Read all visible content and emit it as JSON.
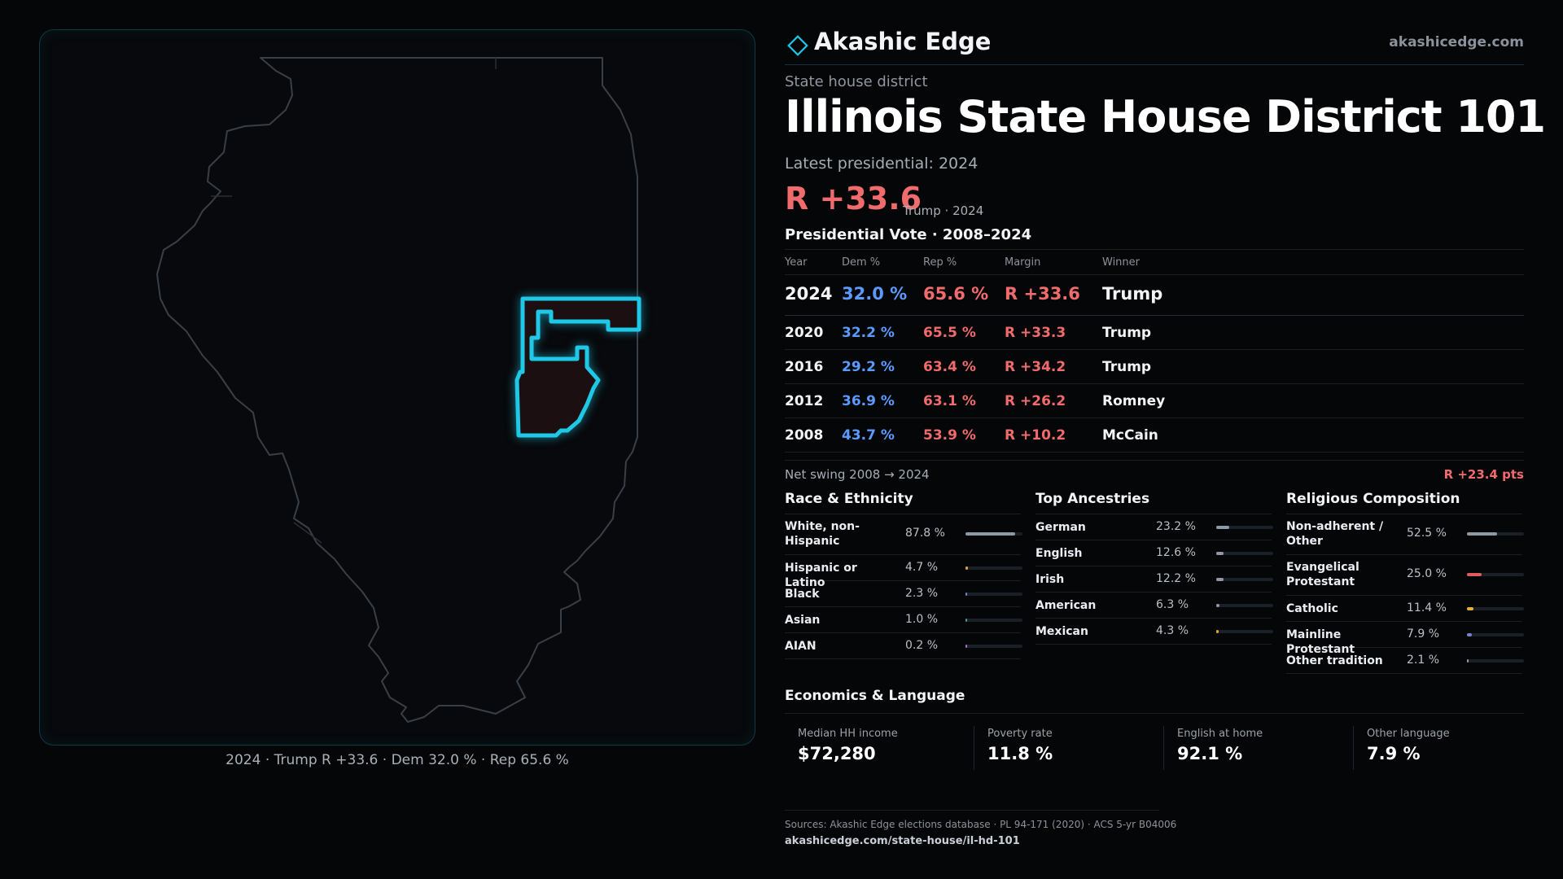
{
  "brand": {
    "name": "Akashic Edge",
    "url": "akashicedge.com"
  },
  "kicker": "State house district",
  "title": "Illinois State House District 101",
  "latest_label": "Latest presidential: 2024",
  "margin": {
    "value": "R +33.6",
    "note": "Trump · 2024"
  },
  "vote_section_title": "Presidential Vote · 2008–2024",
  "vote_table": {
    "headers": [
      "Year",
      "Dem %",
      "Rep %",
      "Margin",
      "Winner"
    ],
    "rows": [
      {
        "year": "2024",
        "dem": "32.0 %",
        "rep": "65.6 %",
        "margin": "R +33.6",
        "winner": "Trump"
      },
      {
        "year": "2020",
        "dem": "32.2 %",
        "rep": "65.5 %",
        "margin": "R +33.3",
        "winner": "Trump"
      },
      {
        "year": "2016",
        "dem": "29.2 %",
        "rep": "63.4 %",
        "margin": "R +34.2",
        "winner": "Trump"
      },
      {
        "year": "2012",
        "dem": "36.9 %",
        "rep": "63.1 %",
        "margin": "R +26.2",
        "winner": "Romney"
      },
      {
        "year": "2008",
        "dem": "43.7 %",
        "rep": "53.9 %",
        "margin": "R +10.2",
        "winner": "McCain"
      }
    ]
  },
  "swing": {
    "label": "Net swing 2008 → 2024",
    "value": "R +23.4 pts"
  },
  "race": {
    "title": "Race & Ethnicity",
    "items": [
      {
        "name": "White, non-Hispanic",
        "pct": "87.8 %",
        "share": 0.878,
        "color": "#8e98a6"
      },
      {
        "name": "Hispanic or Latino",
        "pct": "4.7 %",
        "share": 0.047,
        "color": "#e0a33a"
      },
      {
        "name": "Black",
        "pct": "2.3 %",
        "share": 0.023,
        "color": "#6f86c8"
      },
      {
        "name": "Asian",
        "pct": "1.0 %",
        "share": 0.01,
        "color": "#3fa27a"
      },
      {
        "name": "AIAN",
        "pct": "0.2 %",
        "share": 0.002,
        "color": "#b36ad0"
      }
    ]
  },
  "ancestry": {
    "title": "Top Ancestries",
    "items": [
      {
        "name": "German",
        "pct": "23.2 %",
        "share": 0.232,
        "color": "#8e98a6"
      },
      {
        "name": "English",
        "pct": "12.6 %",
        "share": 0.126,
        "color": "#8e98a6"
      },
      {
        "name": "Irish",
        "pct": "12.2 %",
        "share": 0.122,
        "color": "#8e98a6"
      },
      {
        "name": "American",
        "pct": "6.3 %",
        "share": 0.063,
        "color": "#8e98a6"
      },
      {
        "name": "Mexican",
        "pct": "4.3 %",
        "share": 0.043,
        "color": "#e0a33a"
      }
    ]
  },
  "religion": {
    "title": "Religious Composition",
    "items": [
      {
        "name": "Non-adherent / Other",
        "pct": "52.5 %",
        "share": 0.525,
        "color": "#8e98a6"
      },
      {
        "name": "Evangelical Protestant",
        "pct": "25.0 %",
        "share": 0.25,
        "color": "#e05b5b"
      },
      {
        "name": "Catholic",
        "pct": "11.4 %",
        "share": 0.114,
        "color": "#e0b43a"
      },
      {
        "name": "Mainline Protestant",
        "pct": "7.9 %",
        "share": 0.079,
        "color": "#6f86c8"
      },
      {
        "name": "Other tradition",
        "pct": "2.1 %",
        "share": 0.021,
        "color": "#8e98a6"
      }
    ]
  },
  "economics": {
    "title": "Economics & Language",
    "cards": [
      {
        "label": "Median HH income",
        "value": "$72,280"
      },
      {
        "label": "Poverty rate",
        "value": "11.8 %"
      },
      {
        "label": "English at home",
        "value": "92.1 %"
      },
      {
        "label": "Other language",
        "value": "7.9 %"
      }
    ]
  },
  "map_caption": "2024 · Trump R +33.6 · Dem 32.0 % · Rep 65.6 %",
  "sources": "Sources: Akashic Edge elections database · PL 94-171 (2020) · ACS 5-yr B04006",
  "page_url": "akashicedge.com/state-house/il-hd-101",
  "colors": {
    "accent": "#1fc8e6",
    "dem": "#5b9bff",
    "rep": "#f06b6b"
  },
  "icons": {
    "logo": "diamond-logo-icon"
  }
}
